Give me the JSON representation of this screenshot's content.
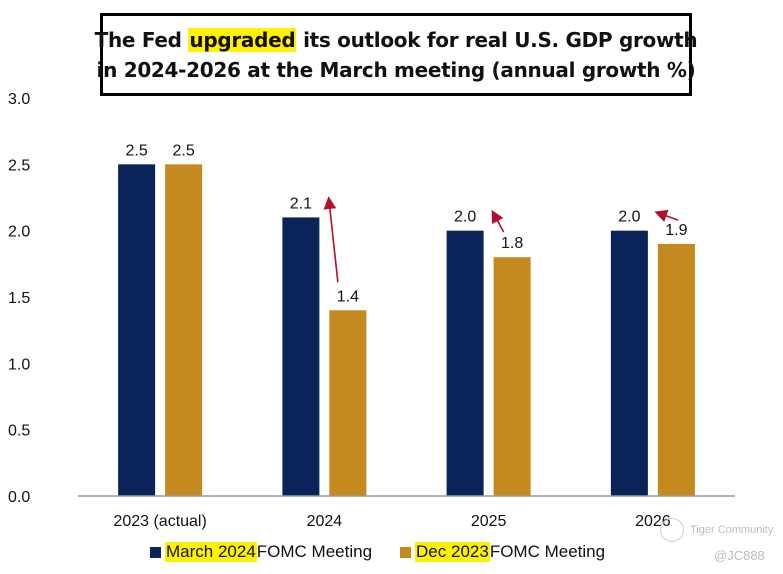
{
  "title": {
    "line1_before": "The Fed ",
    "line1_highlight": "upgraded",
    "line1_after": " its outlook for real U.S. GDP growth",
    "line2": "in 2024-2026 at the March meeting (annual growth %)"
  },
  "chart_data": {
    "type": "bar",
    "title": "The Fed upgraded its outlook for real U.S. GDP growth in 2024-2026 at the March meeting (annual growth %)",
    "categories": [
      "2023 (actual)",
      "2024",
      "2025",
      "2026"
    ],
    "series": [
      {
        "name": "March 2024 FOMC Meeting",
        "color": "#0a2459",
        "values": [
          2.5,
          2.1,
          2.0,
          2.0
        ]
      },
      {
        "name": "Dec 2023 FOMC Meeting",
        "color": "#c58a1f",
        "values": [
          2.5,
          1.4,
          1.8,
          1.9
        ]
      }
    ],
    "data_labels": [
      [
        "2.5",
        "2.1",
        "2.0",
        "2.0"
      ],
      [
        "2.5",
        "1.4",
        "1.8",
        "1.9"
      ]
    ],
    "ylim": [
      0,
      3.0
    ],
    "yticks": [
      "0.0",
      "0.5",
      "1.0",
      "1.5",
      "2.0",
      "2.5",
      "3.0"
    ],
    "xlabel": "",
    "ylabel": "",
    "grid": false,
    "legend_position": "bottom",
    "annotations": [
      "red arrows from Dec 2023 bars to March 2024 bars for 2024, 2025, 2026 indicating upgrade"
    ],
    "arrow_color": "#b0102a"
  },
  "legend": [
    {
      "highlight": "March 2024",
      "rest": " FOMC Meeting",
      "color": "#0a2459"
    },
    {
      "highlight": "Dec 2023",
      "rest": " FOMC Meeting",
      "color": "#c58a1f"
    }
  ],
  "watermark": {
    "brand": "Tiger Community",
    "user": "@JC888"
  }
}
